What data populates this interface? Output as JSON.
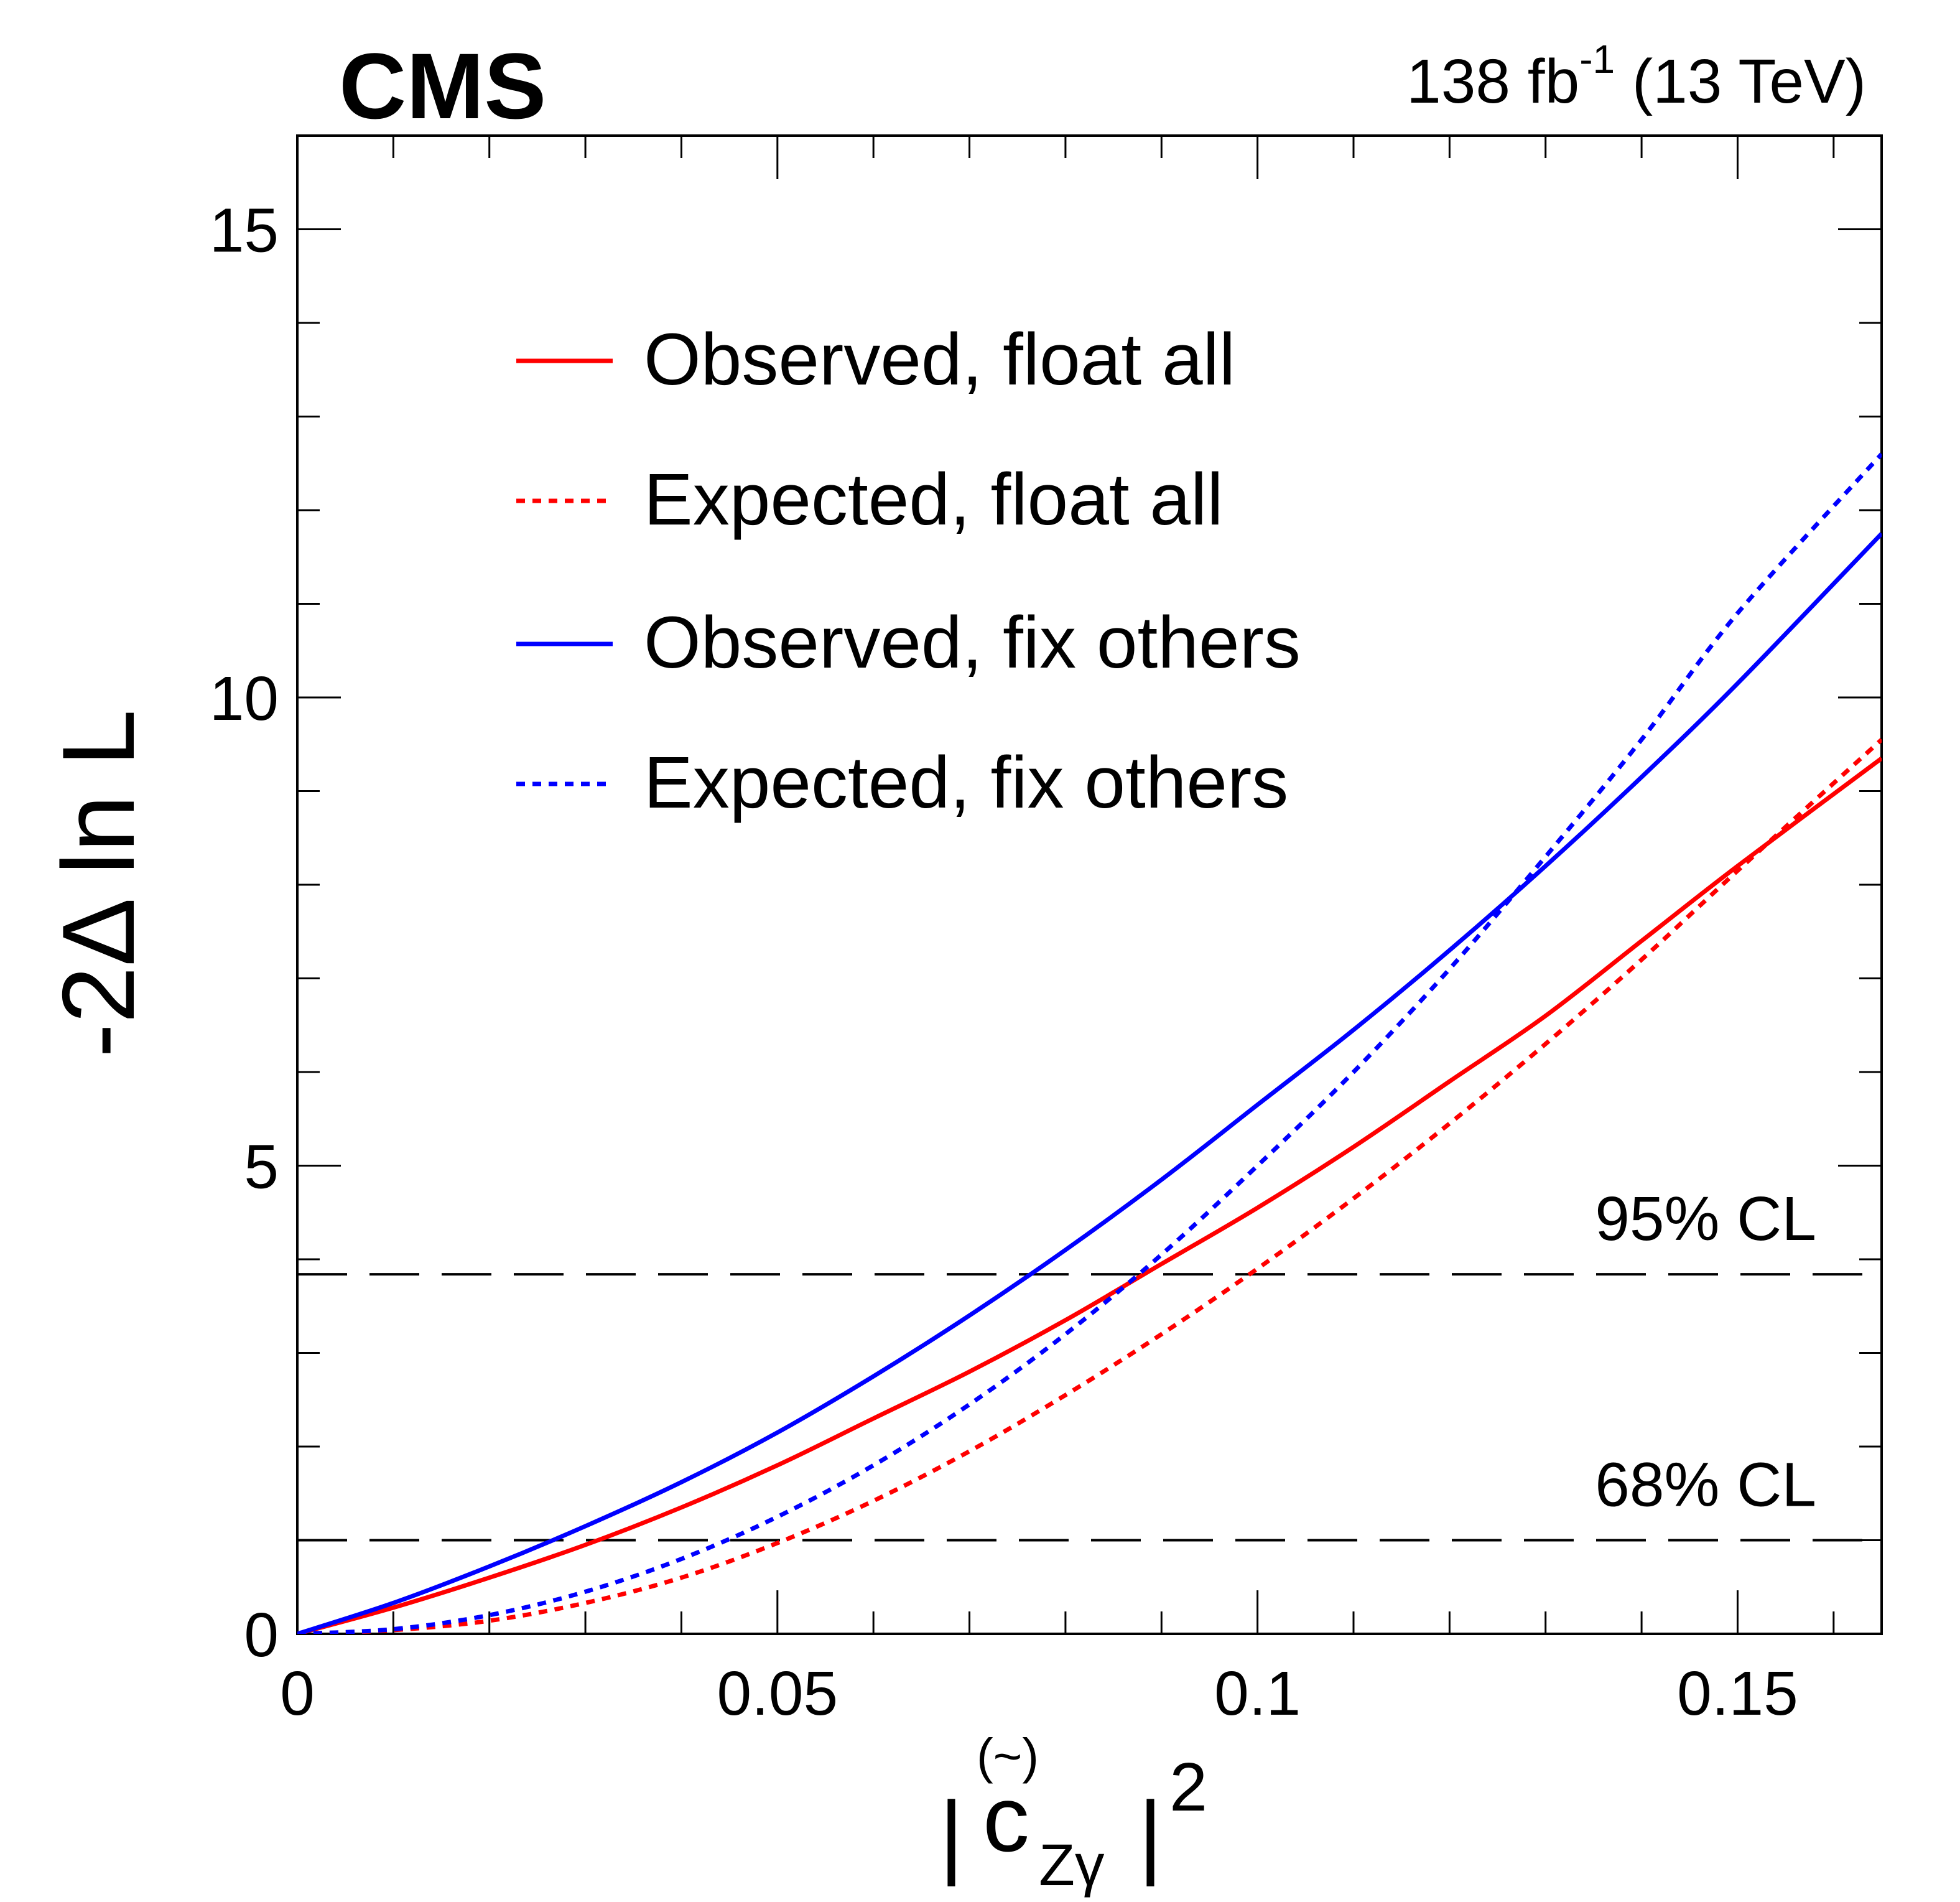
{
  "header": {
    "experiment": "CMS",
    "lumi_value": "138 fb",
    "lumi_exponent": "-1",
    "energy": " (13 TeV)"
  },
  "axes": {
    "ylabel": "-2Δ ln L",
    "xlabel": "|c̃zγ|2",
    "xlabel_parts": {
      "bar": "|",
      "symbol": "c",
      "accent": "(~)",
      "subscript": "Zγ",
      "power": "2"
    }
  },
  "chart_data": {
    "type": "line",
    "xlabel": "|(~)c_Zγ|^2",
    "ylabel": "-2Δ ln L",
    "xlim": [
      0,
      0.165
    ],
    "ylim": [
      0,
      16
    ],
    "xticks": [
      0,
      0.05,
      0.1,
      0.15
    ],
    "xtick_labels": [
      "0",
      "0.05",
      "0.1",
      "0.15"
    ],
    "yticks": [
      0,
      5,
      10,
      15
    ],
    "ytick_labels": [
      "0",
      "5",
      "10",
      "15"
    ],
    "legend_position": "upper-left inside",
    "series": [
      {
        "name": "Observed, float all",
        "color": "#ff0000",
        "style": "solid",
        "x": [
          0,
          0.01,
          0.02,
          0.03,
          0.04,
          0.05,
          0.06,
          0.07,
          0.08,
          0.09,
          0.1,
          0.11,
          0.12,
          0.13,
          0.14,
          0.15,
          0.165
        ],
        "y": [
          0,
          0.28,
          0.6,
          0.95,
          1.35,
          1.8,
          2.3,
          2.8,
          3.35,
          3.95,
          4.55,
          5.2,
          5.9,
          6.6,
          7.4,
          8.2,
          9.35
        ]
      },
      {
        "name": "Expected, float all",
        "color": "#ff0000",
        "style": "dotted",
        "x": [
          0,
          0.01,
          0.02,
          0.03,
          0.04,
          0.05,
          0.06,
          0.07,
          0.08,
          0.09,
          0.1,
          0.11,
          0.12,
          0.13,
          0.14,
          0.15,
          0.165
        ],
        "y": [
          0,
          0.04,
          0.14,
          0.33,
          0.6,
          0.97,
          1.42,
          1.95,
          2.55,
          3.2,
          3.9,
          4.65,
          5.45,
          6.3,
          7.2,
          8.15,
          9.55
        ]
      },
      {
        "name": "Observed, fix others",
        "color": "#0000ff",
        "style": "solid",
        "x": [
          0,
          0.01,
          0.02,
          0.03,
          0.04,
          0.05,
          0.06,
          0.07,
          0.08,
          0.09,
          0.1,
          0.11,
          0.12,
          0.13,
          0.14,
          0.15,
          0.165
        ],
        "y": [
          0,
          0.33,
          0.72,
          1.15,
          1.62,
          2.15,
          2.75,
          3.4,
          4.1,
          4.85,
          5.65,
          6.45,
          7.3,
          8.2,
          9.15,
          10.15,
          11.75
        ]
      },
      {
        "name": "Expected, fix others",
        "color": "#0000ff",
        "style": "dotted",
        "x": [
          0,
          0.01,
          0.02,
          0.03,
          0.04,
          0.05,
          0.06,
          0.07,
          0.08,
          0.09,
          0.1,
          0.11,
          0.12,
          0.13,
          0.14,
          0.15,
          0.165
        ],
        "y": [
          0,
          0.05,
          0.2,
          0.45,
          0.8,
          1.25,
          1.8,
          2.45,
          3.2,
          4.05,
          5.0,
          6.0,
          7.1,
          8.3,
          9.55,
          10.9,
          12.6
        ]
      }
    ],
    "reference_lines": [
      {
        "label": "68% CL",
        "y": 1.0,
        "style": "dashed",
        "color": "#000000"
      },
      {
        "label": "95% CL",
        "y": 3.84,
        "style": "dashed",
        "color": "#000000"
      }
    ]
  }
}
